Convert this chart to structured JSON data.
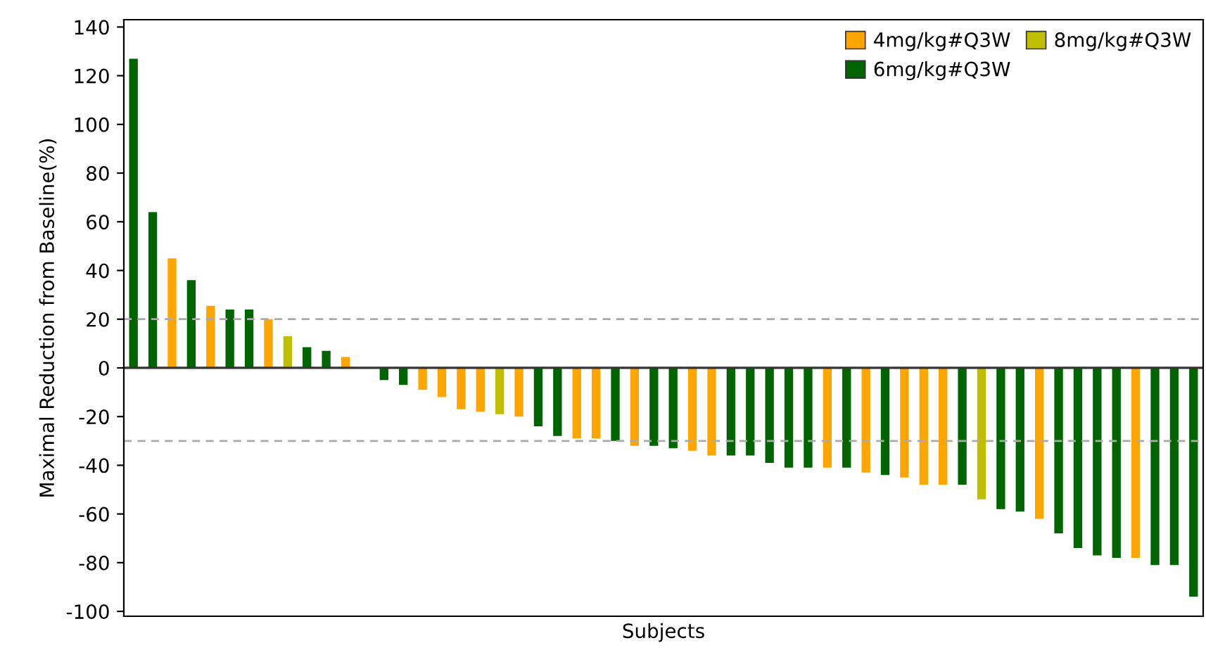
{
  "chart_data": {
    "type": "bar",
    "xlabel": "Subjects",
    "ylabel": "Maximal Reduction from Baseline(%)",
    "categories": [
      null,
      null,
      null,
      null,
      null,
      null,
      null,
      null,
      null,
      null,
      null,
      null,
      null,
      null,
      null,
      null,
      null,
      null,
      null,
      null,
      null,
      null,
      null,
      null,
      null,
      null,
      null,
      null,
      null,
      null,
      null,
      null,
      null,
      null,
      null,
      null,
      null,
      null,
      null,
      null,
      null,
      null,
      null,
      null,
      null,
      null,
      null,
      null,
      null,
      null,
      null,
      null,
      null,
      null,
      null,
      null
    ],
    "series": [
      {
        "name": "4mg/kg#Q3W",
        "color": "#ffa500",
        "values": [
          null,
          null,
          45,
          null,
          25.5,
          null,
          null,
          20,
          null,
          null,
          null,
          4.5,
          0,
          null,
          null,
          -9,
          -12,
          -17,
          -18,
          null,
          -20,
          null,
          null,
          -29,
          -29,
          null,
          -32,
          null,
          null,
          -34,
          -36,
          null,
          null,
          null,
          null,
          null,
          -41,
          null,
          -43,
          null,
          -45,
          -48,
          -48,
          null,
          null,
          null,
          null,
          -62,
          null,
          null,
          null,
          null,
          -78,
          null,
          null,
          null
        ]
      },
      {
        "name": "6mg/kg#Q3W",
        "color": "#006400",
        "values": [
          127,
          64,
          null,
          36,
          null,
          24,
          24,
          null,
          null,
          8.5,
          7,
          null,
          null,
          -5,
          -7,
          null,
          null,
          null,
          null,
          null,
          null,
          -24,
          -28,
          null,
          null,
          -30,
          null,
          -32,
          -33,
          null,
          null,
          -36,
          -36,
          -39,
          -41,
          -41,
          null,
          -41,
          null,
          -44,
          null,
          null,
          null,
          -48,
          null,
          -58,
          -59,
          null,
          -68,
          -74,
          -77,
          -78,
          null,
          -81,
          -81,
          -94
        ]
      },
      {
        "name": "8mg/kg#Q3W",
        "color": "#bfbf00",
        "values": [
          null,
          null,
          null,
          null,
          null,
          null,
          null,
          null,
          13,
          null,
          null,
          null,
          null,
          null,
          null,
          null,
          null,
          null,
          null,
          -19,
          null,
          null,
          null,
          null,
          null,
          null,
          null,
          null,
          null,
          null,
          null,
          null,
          null,
          null,
          null,
          null,
          null,
          null,
          null,
          null,
          null,
          null,
          null,
          null,
          -54,
          null,
          null,
          null,
          null,
          null,
          null,
          null,
          null,
          null,
          null,
          null
        ]
      }
    ],
    "ylim": [
      -102,
      143
    ],
    "yticks": [
      -100,
      -80,
      -60,
      -40,
      -20,
      0,
      20,
      40,
      60,
      80,
      100,
      120,
      140
    ],
    "ref_lines": [
      {
        "axis": "y",
        "value": 20,
        "color": "#aaaaaa",
        "line_style": "dashed"
      },
      {
        "axis": "y",
        "value": -30,
        "color": "#aaaaaa",
        "line_style": "dashed"
      }
    ],
    "grid": false,
    "legend": "top right"
  }
}
